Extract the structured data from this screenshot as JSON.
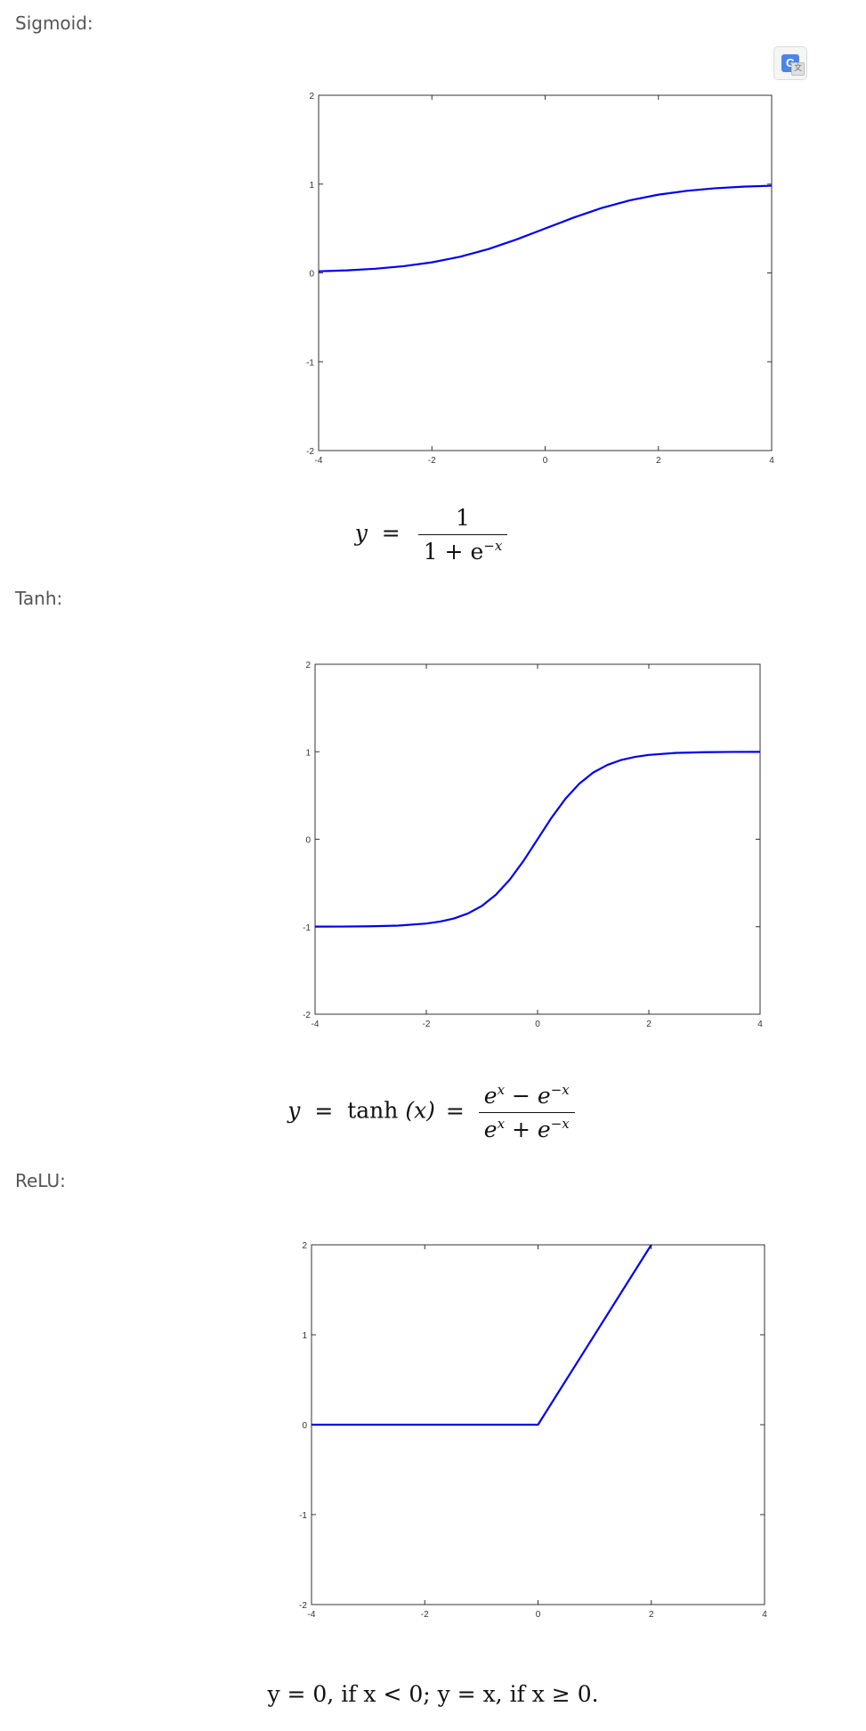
{
  "sections": [
    {
      "label": "Sigmoid:"
    },
    {
      "label": "Tanh:"
    },
    {
      "label": "ReLU:"
    }
  ],
  "translate_widget": {
    "icon": "google-translate-icon"
  },
  "formulas": {
    "sigmoid": {
      "lhs": "y",
      "eq": "=",
      "numerator": "1",
      "den_base": "1 + e",
      "den_exp": "−x"
    },
    "tanh": {
      "lhs": "y",
      "eq": "=",
      "fn": "tanh",
      "arg": "(x)",
      "eq2": "=",
      "num_a": "e",
      "num_a_exp": "x",
      "num_op": "−",
      "num_b": "e",
      "num_b_exp": "−x",
      "den_a": "e",
      "den_a_exp": "x",
      "den_op": "+",
      "den_b": "e",
      "den_b_exp": "−x"
    },
    "relu": {
      "text": "y = 0,  if x  <  0;  y = x,  if x ≥ 0."
    }
  },
  "chart_data": [
    {
      "type": "line",
      "title": "",
      "xlabel": "",
      "ylabel": "",
      "xlim": [
        -4,
        4
      ],
      "ylim": [
        -2,
        2
      ],
      "xticks": [
        "-4",
        "-2",
        "0",
        "2",
        "4"
      ],
      "yticks": [
        "2",
        "1",
        "0",
        "-1",
        "-2"
      ],
      "grid": false,
      "line_color": "#0000ee",
      "series": [
        {
          "x": [
            -4,
            -3.5,
            -3,
            -2.5,
            -2,
            -1.5,
            -1,
            -0.5,
            0,
            0.5,
            1,
            1.5,
            2,
            2.5,
            3,
            3.5,
            4
          ],
          "y": [
            0.018,
            0.029,
            0.047,
            0.076,
            0.119,
            0.182,
            0.269,
            0.378,
            0.5,
            0.622,
            0.731,
            0.818,
            0.881,
            0.924,
            0.953,
            0.971,
            0.982
          ]
        }
      ]
    },
    {
      "type": "line",
      "title": "",
      "xlabel": "",
      "ylabel": "",
      "xlim": [
        -4,
        4
      ],
      "ylim": [
        -2,
        2
      ],
      "xticks": [
        "-4",
        "-2",
        "0",
        "2",
        "4"
      ],
      "yticks": [
        "2",
        "1",
        "0",
        "-1",
        "-2"
      ],
      "grid": false,
      "line_color": "#0000ee",
      "series": [
        {
          "x": [
            -4,
            -3.5,
            -3,
            -2.5,
            -2,
            -1.75,
            -1.5,
            -1.25,
            -1,
            -0.75,
            -0.5,
            -0.25,
            0,
            0.25,
            0.5,
            0.75,
            1,
            1.25,
            1.5,
            1.75,
            2,
            2.5,
            3,
            3.5,
            4
          ],
          "y": [
            -0.999,
            -0.998,
            -0.995,
            -0.987,
            -0.964,
            -0.941,
            -0.905,
            -0.848,
            -0.762,
            -0.635,
            -0.462,
            -0.245,
            0,
            0.245,
            0.462,
            0.635,
            0.762,
            0.848,
            0.905,
            0.941,
            0.964,
            0.987,
            0.995,
            0.998,
            0.999
          ]
        }
      ]
    },
    {
      "type": "line",
      "title": "",
      "xlabel": "",
      "ylabel": "",
      "xlim": [
        -4,
        4
      ],
      "ylim": [
        -2,
        2
      ],
      "xticks": [
        "-4",
        "-2",
        "0",
        "2",
        "4"
      ],
      "yticks": [
        "2",
        "1",
        "0",
        "-1",
        "-2"
      ],
      "grid": false,
      "line_color": "#0000ee",
      "series": [
        {
          "x": [
            -4,
            0,
            2
          ],
          "y": [
            0,
            0,
            2
          ]
        }
      ]
    }
  ]
}
